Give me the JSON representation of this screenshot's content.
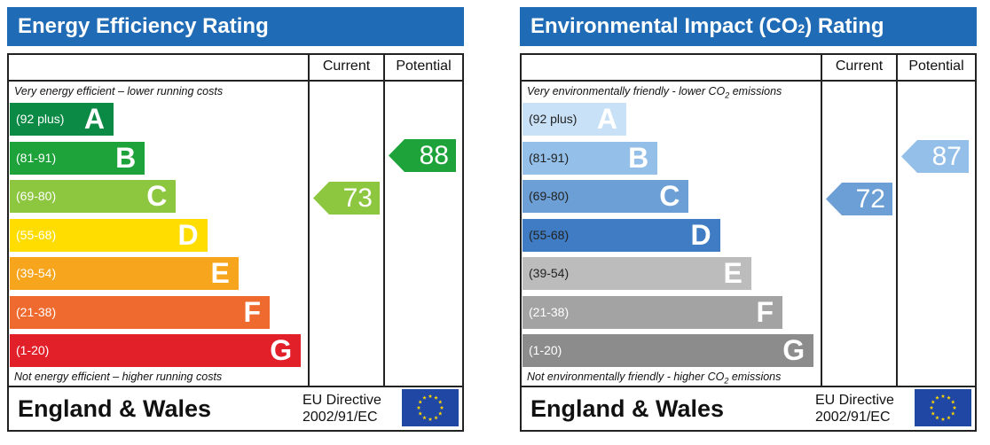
{
  "energy_efficiency": {
    "title": "Energy Efficiency Rating",
    "columns": {
      "current": "Current",
      "potential": "Potential"
    },
    "top_note": "Very energy efficient – lower running costs",
    "bottom_note": "Not energy efficient – higher running costs",
    "region": "England & Wales",
    "directive": {
      "line1": "EU Directive",
      "line2": "2002/91/EC"
    }
  },
  "environmental_impact": {
    "title_prefix": "Environmental Impact (CO",
    "title_sub": "2",
    "title_suffix": ") Rating",
    "columns": {
      "current": "Current",
      "potential": "Potential"
    },
    "top_note_prefix": "Very environmentally friendly - lower CO",
    "top_note_sub": "2",
    "top_note_suffix": " emissions",
    "bottom_note_prefix": "Not environmentally friendly - higher CO",
    "bottom_note_sub": "2",
    "bottom_note_suffix": " emissions",
    "region": "England & Wales",
    "directive": {
      "line1": "EU Directive",
      "line2": "2002/91/EC"
    }
  },
  "chart_data": [
    {
      "type": "bar",
      "title": "Energy Efficiency Rating",
      "categories": [
        "A",
        "B",
        "C",
        "D",
        "E",
        "F",
        "G"
      ],
      "ranges": [
        "(92 plus)",
        "(81-91)",
        "(69-80)",
        "(55-68)",
        "(39-54)",
        "(21-38)",
        "(1-20)"
      ],
      "colors": [
        "#0b8a45",
        "#1ea23a",
        "#8dc63f",
        "#ffdd00",
        "#f7a51c",
        "#ef6a2e",
        "#e2202a"
      ],
      "current": {
        "label": "Current",
        "value": 73,
        "band": "C",
        "color": "#8dc63f"
      },
      "potential": {
        "label": "Potential",
        "value": 88,
        "band": "B",
        "color": "#1ea23a"
      }
    },
    {
      "type": "bar",
      "title": "Environmental Impact (CO2) Rating",
      "categories": [
        "A",
        "B",
        "C",
        "D",
        "E",
        "F",
        "G"
      ],
      "ranges": [
        "(92 plus)",
        "(81-91)",
        "(69-80)",
        "(55-68)",
        "(39-54)",
        "(21-38)",
        "(1-20)"
      ],
      "colors": [
        "#c9e1f6",
        "#93bfe9",
        "#6c9fd5",
        "#3f7cc3",
        "#bcbcbc",
        "#a3a3a3",
        "#8c8c8c"
      ],
      "range_text_colors": [
        "#222222",
        "#222222",
        "#222222",
        "#222222",
        "#222222",
        "#ffffff",
        "#ffffff"
      ],
      "current": {
        "label": "Current",
        "value": 72,
        "band": "C",
        "color": "#6c9fd5"
      },
      "potential": {
        "label": "Potential",
        "value": 87,
        "band": "B",
        "color": "#93bfe9"
      }
    }
  ]
}
